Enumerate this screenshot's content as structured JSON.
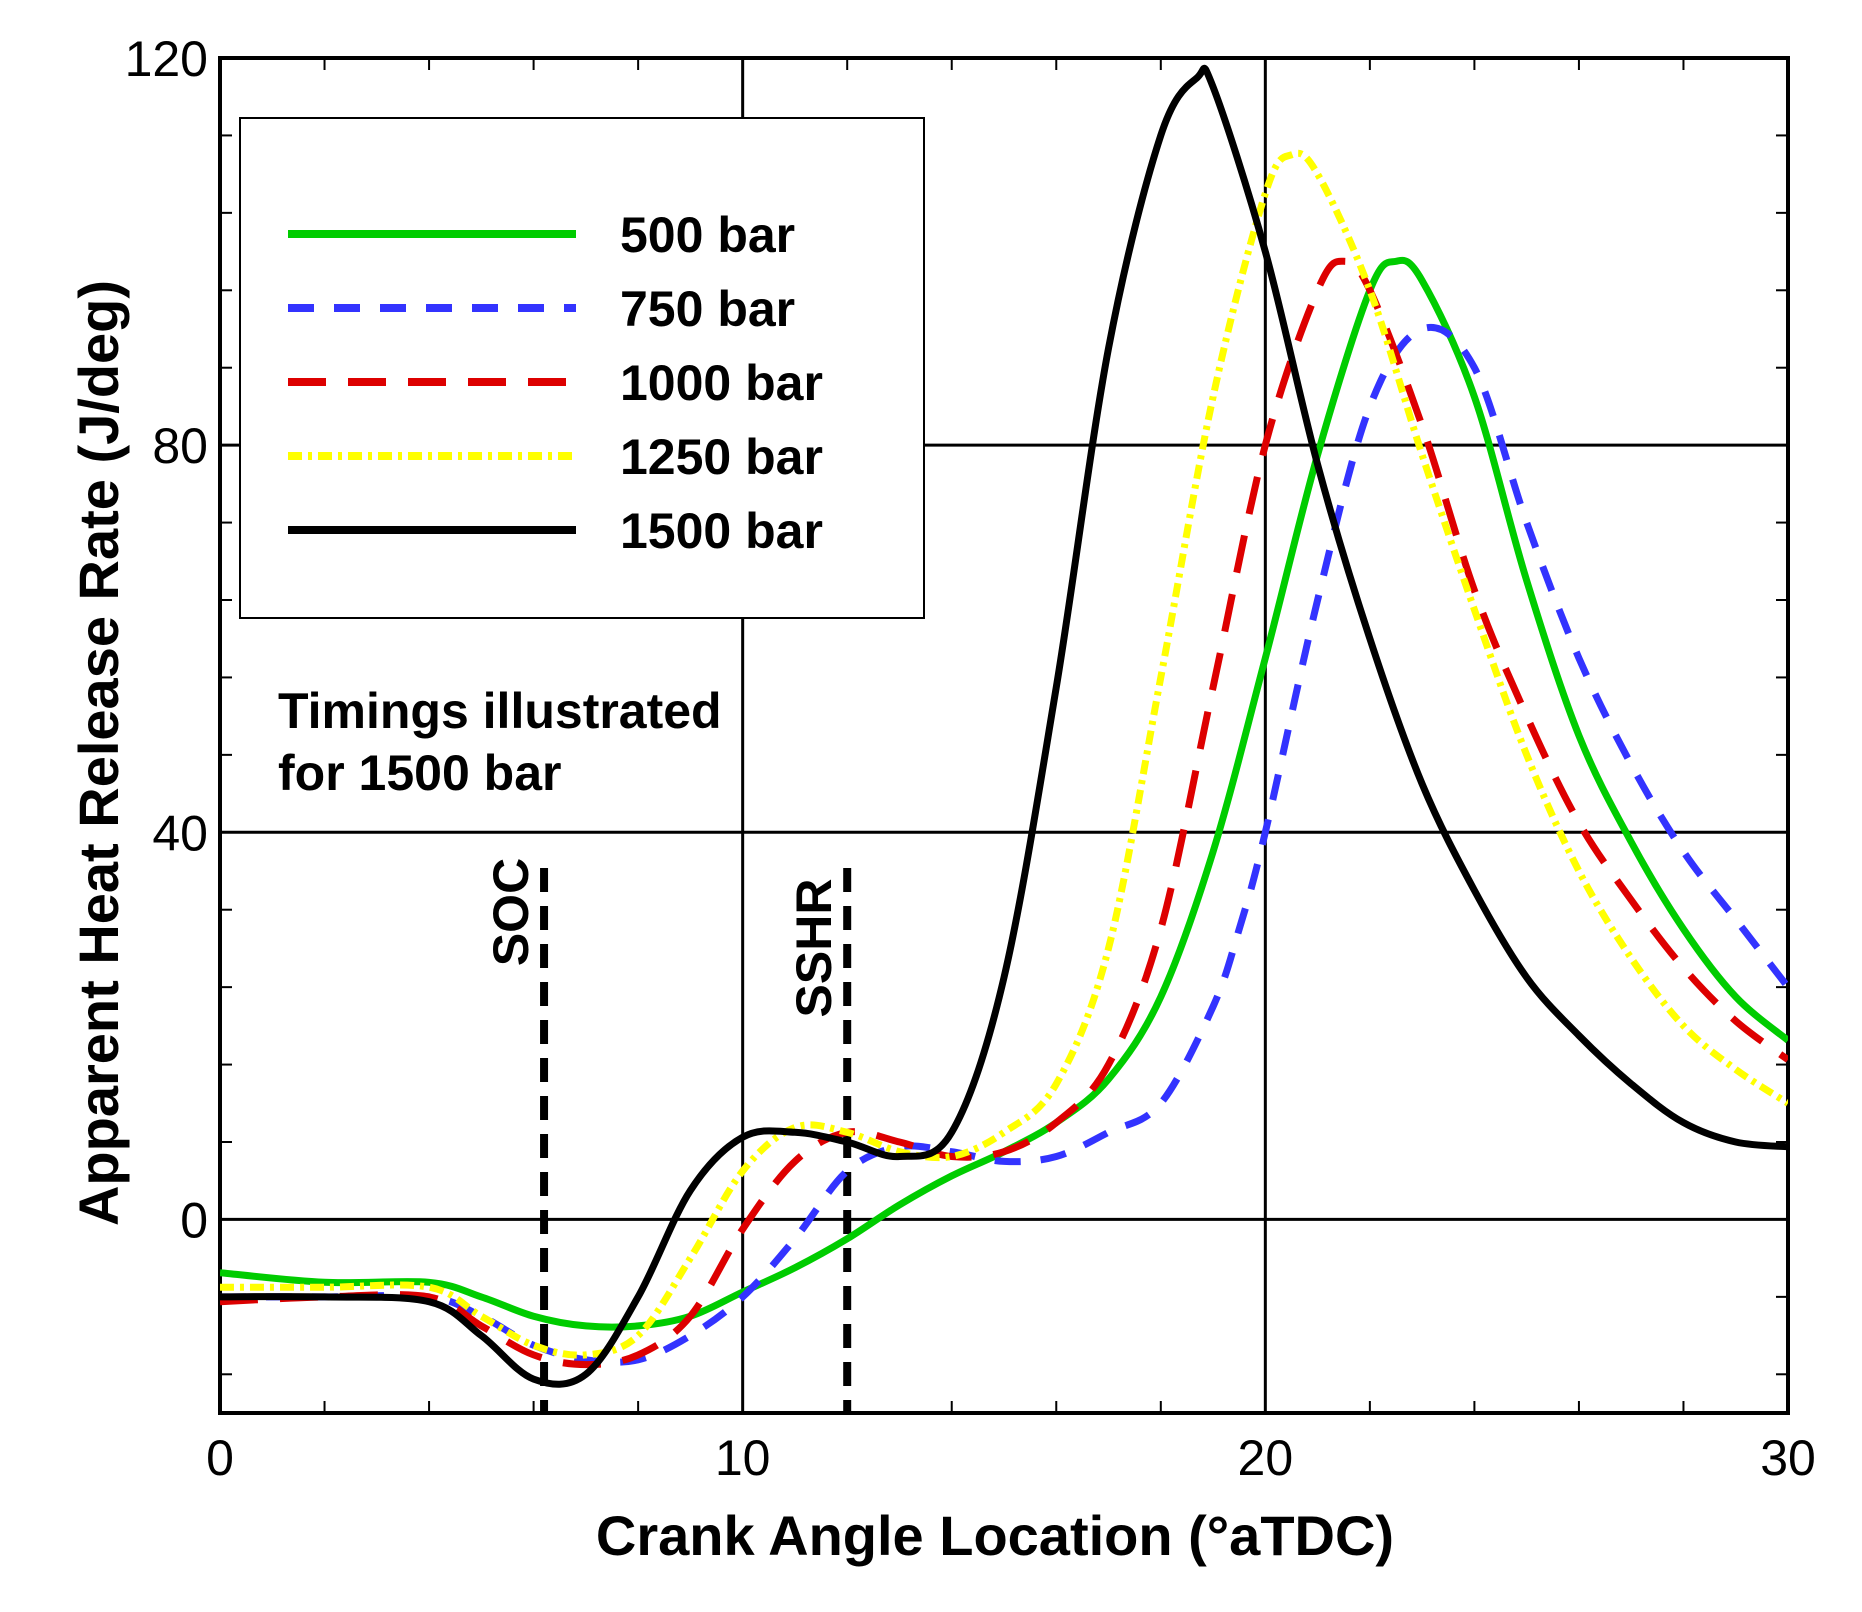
{
  "chart_data": {
    "type": "line",
    "title": "",
    "xlabel": "Crank Angle Location (°aTDC)",
    "ylabel": "Apparent Heat Release Rate (J/deg)",
    "xlim": [
      0,
      30
    ],
    "ylim": [
      -20,
      120
    ],
    "x_ticks": [
      0,
      10,
      20,
      30
    ],
    "x_tick_labels": [
      "0",
      "10",
      "20",
      "30"
    ],
    "y_ticks": [
      0,
      40,
      80,
      120
    ],
    "y_tick_labels": [
      "0",
      "40",
      "80",
      "120"
    ],
    "x_gridlines": [
      10,
      20
    ],
    "y_gridlines": [
      0,
      40,
      80
    ],
    "legend_position": "top-left",
    "series": [
      {
        "name": "500 bar",
        "color": "#00cc00",
        "dash": "solid",
        "points": [
          [
            0,
            -5.5
          ],
          [
            2,
            -6.5
          ],
          [
            4,
            -6.5
          ],
          [
            5,
            -8
          ],
          [
            6,
            -10
          ],
          [
            7,
            -11
          ],
          [
            8,
            -11
          ],
          [
            9,
            -10
          ],
          [
            10,
            -7.5
          ],
          [
            11,
            -5
          ],
          [
            12,
            -2
          ],
          [
            13,
            1.5
          ],
          [
            14,
            4.5
          ],
          [
            15,
            7
          ],
          [
            16,
            10
          ],
          [
            17,
            14.5
          ],
          [
            18,
            23
          ],
          [
            19,
            38
          ],
          [
            20,
            58
          ],
          [
            21,
            79
          ],
          [
            22,
            96
          ],
          [
            22.5,
            99
          ],
          [
            23,
            97
          ],
          [
            24,
            85
          ],
          [
            25,
            66
          ],
          [
            26,
            50
          ],
          [
            27,
            39
          ],
          [
            28,
            30
          ],
          [
            29,
            23
          ],
          [
            30,
            18.5
          ]
        ]
      },
      {
        "name": "750 bar",
        "color": "#3333ff",
        "dash": "dash",
        "points": [
          [
            0,
            -8
          ],
          [
            2,
            -8
          ],
          [
            4,
            -8
          ],
          [
            5,
            -10
          ],
          [
            6,
            -13
          ],
          [
            7,
            -14.5
          ],
          [
            8,
            -14.5
          ],
          [
            9,
            -12
          ],
          [
            10,
            -8
          ],
          [
            11,
            -2
          ],
          [
            12,
            5
          ],
          [
            13,
            7.5
          ],
          [
            14,
            7
          ],
          [
            15,
            6
          ],
          [
            16,
            6.5
          ],
          [
            17,
            9
          ],
          [
            18,
            12
          ],
          [
            19,
            22
          ],
          [
            19.5,
            30
          ],
          [
            20,
            40
          ],
          [
            21,
            64
          ],
          [
            22,
            84
          ],
          [
            23,
            92
          ],
          [
            24,
            88
          ],
          [
            25,
            72
          ],
          [
            26,
            58
          ],
          [
            27,
            47
          ],
          [
            28,
            38
          ],
          [
            29,
            31
          ],
          [
            30,
            24
          ]
        ]
      },
      {
        "name": "1000 bar",
        "color": "#dd0000",
        "dash": "longdash",
        "points": [
          [
            0,
            -8.5
          ],
          [
            2,
            -8
          ],
          [
            4,
            -8
          ],
          [
            5,
            -11
          ],
          [
            6,
            -14
          ],
          [
            7,
            -15
          ],
          [
            8,
            -14
          ],
          [
            9,
            -10
          ],
          [
            10,
            -1
          ],
          [
            11,
            6
          ],
          [
            12,
            9
          ],
          [
            13,
            8
          ],
          [
            14,
            6.5
          ],
          [
            15,
            7
          ],
          [
            16,
            10
          ],
          [
            17,
            16
          ],
          [
            18,
            30
          ],
          [
            19,
            55
          ],
          [
            20,
            80
          ],
          [
            21,
            96
          ],
          [
            21.5,
            99
          ],
          [
            22,
            96
          ],
          [
            23,
            82
          ],
          [
            24,
            65
          ],
          [
            25,
            52
          ],
          [
            26,
            41
          ],
          [
            27,
            33
          ],
          [
            28,
            26
          ],
          [
            29,
            20.5
          ],
          [
            30,
            16.5
          ]
        ]
      },
      {
        "name": "1250 bar",
        "color": "#ffff00",
        "dash": "dashdot",
        "points": [
          [
            0,
            -7
          ],
          [
            2,
            -7
          ],
          [
            4,
            -7
          ],
          [
            5,
            -10
          ],
          [
            6,
            -13
          ],
          [
            7,
            -14
          ],
          [
            8,
            -12
          ],
          [
            9,
            -4
          ],
          [
            10,
            5
          ],
          [
            11,
            9.5
          ],
          [
            12,
            9
          ],
          [
            13,
            7
          ],
          [
            14,
            6.5
          ],
          [
            15,
            9
          ],
          [
            16,
            14
          ],
          [
            17,
            28
          ],
          [
            18,
            56
          ],
          [
            19,
            85
          ],
          [
            20,
            106
          ],
          [
            20.5,
            110
          ],
          [
            21,
            108
          ],
          [
            22,
            96
          ],
          [
            23,
            79
          ],
          [
            24,
            63
          ],
          [
            25,
            48
          ],
          [
            26,
            36
          ],
          [
            27,
            27
          ],
          [
            28,
            20
          ],
          [
            29,
            15.5
          ],
          [
            30,
            12
          ]
        ]
      },
      {
        "name": "1500 bar",
        "color": "#000000",
        "dash": "solid",
        "points": [
          [
            0,
            -8
          ],
          [
            2,
            -8
          ],
          [
            4,
            -8.5
          ],
          [
            5,
            -12
          ],
          [
            6,
            -16.5
          ],
          [
            7,
            -16
          ],
          [
            8,
            -8
          ],
          [
            9,
            3
          ],
          [
            10,
            8.5
          ],
          [
            11,
            9
          ],
          [
            12,
            8
          ],
          [
            13,
            6.5
          ],
          [
            14,
            9
          ],
          [
            15,
            25
          ],
          [
            16,
            55
          ],
          [
            17,
            90
          ],
          [
            18,
            112
          ],
          [
            18.7,
            118
          ],
          [
            19,
            117
          ],
          [
            20,
            100
          ],
          [
            21,
            78
          ],
          [
            22,
            60
          ],
          [
            23,
            45
          ],
          [
            24,
            34
          ],
          [
            25,
            25
          ],
          [
            26,
            19
          ],
          [
            27,
            14
          ],
          [
            28,
            10
          ],
          [
            29,
            8
          ],
          [
            30,
            7.5
          ]
        ]
      }
    ],
    "annotations": {
      "note_line1": "Timings illustrated",
      "note_line2": "for 1500 bar",
      "markers": [
        {
          "label": "SOC",
          "x": 6.2
        },
        {
          "label": "SSHR",
          "x": 12.0
        }
      ]
    }
  }
}
